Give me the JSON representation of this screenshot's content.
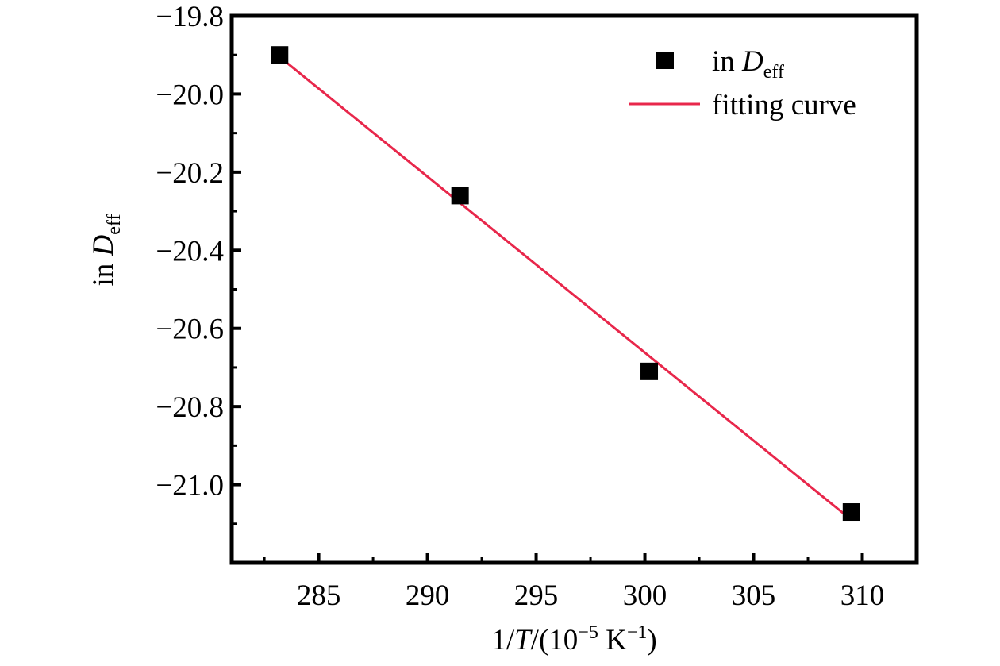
{
  "chart_data": {
    "type": "scatter",
    "title": "",
    "xlabel": {
      "prefix": "1/",
      "var": "T",
      "mid": "/(10",
      "exp1": "−5",
      "unit": " K",
      "exp2": "−1",
      "suffix": ")"
    },
    "ylabel": {
      "prefix": "in ",
      "var": "D",
      "sub": "eff"
    },
    "xlim": [
      281.0,
      312.5
    ],
    "ylim": [
      -21.2,
      -19.8
    ],
    "x_ticks": [
      285,
      290,
      295,
      300,
      305,
      310
    ],
    "x_tick_labels": [
      "285",
      "290",
      "295",
      "300",
      "305",
      "310"
    ],
    "y_ticks": [
      -19.8,
      -20.0,
      -20.2,
      -20.4,
      -20.6,
      -20.8,
      -21.0
    ],
    "y_tick_labels": [
      "−19.8",
      "−20.0",
      "−20.2",
      "−20.4",
      "−20.6",
      "−20.8",
      "−21.0"
    ],
    "grid": false,
    "legend_position": "top-right",
    "series": [
      {
        "name": {
          "prefix": "in ",
          "var": "D",
          "sub": "eff"
        },
        "kind": "scatter",
        "marker": "square",
        "color": "#000000",
        "x": [
          283.2,
          291.5,
          300.2,
          309.5
        ],
        "y": [
          -19.9,
          -20.26,
          -20.71,
          -21.07
        ]
      },
      {
        "name": "fitting curve",
        "kind": "line",
        "color": "#e8274b",
        "x": [
          283.2,
          309.5
        ],
        "y": [
          -19.905,
          -21.09
        ]
      }
    ]
  }
}
